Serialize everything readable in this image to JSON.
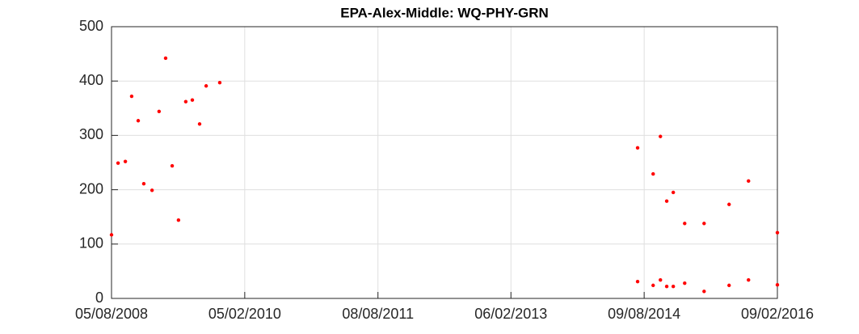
{
  "chart_data": {
    "type": "scatter",
    "title": "EPA-Alex-Middle: WQ-PHY-GRN",
    "x": [
      "2008-08-05",
      "2008-09-01",
      "2008-10-01",
      "2008-10-27",
      "2008-11-23",
      "2008-12-16",
      "2009-01-19",
      "2009-02-17",
      "2009-03-16",
      "2009-04-12",
      "2009-05-08",
      "2009-06-07",
      "2009-07-04",
      "2009-08-03",
      "2009-08-30",
      "2009-10-25",
      "2014-07-13",
      "2014-07-13",
      "2014-09-15",
      "2014-09-15",
      "2014-10-15",
      "2014-10-15",
      "2014-11-10",
      "2014-11-10",
      "2014-12-07",
      "2014-12-07",
      "2015-01-23",
      "2015-01-23",
      "2015-04-13",
      "2015-04-13",
      "2015-07-25",
      "2015-07-25",
      "2015-10-13",
      "2015-10-13",
      "2016-02-09",
      "2016-02-09"
    ],
    "values": [
      117,
      249,
      252,
      372,
      327,
      211,
      199,
      344,
      442,
      244,
      144,
      362,
      365,
      321,
      391,
      397,
      277,
      31,
      229,
      24,
      298,
      34,
      179,
      22,
      195,
      22,
      138,
      28,
      138,
      13,
      173,
      24,
      216,
      34,
      121,
      25
    ],
    "color": "#ff0000",
    "xlim": [
      "2008-08-05",
      "2016-02-09"
    ],
    "xticks": [
      {
        "value": "2008-08-05",
        "label": "05/08/2008"
      },
      {
        "value": "2010-02-05",
        "label": "05/02/2010"
      },
      {
        "value": "2011-08-08",
        "label": "08/08/2011"
      },
      {
        "value": "2013-02-06",
        "label": "06/02/2013"
      },
      {
        "value": "2014-08-09",
        "label": "09/08/2014"
      },
      {
        "value": "2016-02-09",
        "label": "09/02/2016"
      }
    ],
    "ylim": [
      0,
      500
    ],
    "yticks": [
      0,
      100,
      200,
      300,
      400,
      500
    ],
    "grid": true
  }
}
